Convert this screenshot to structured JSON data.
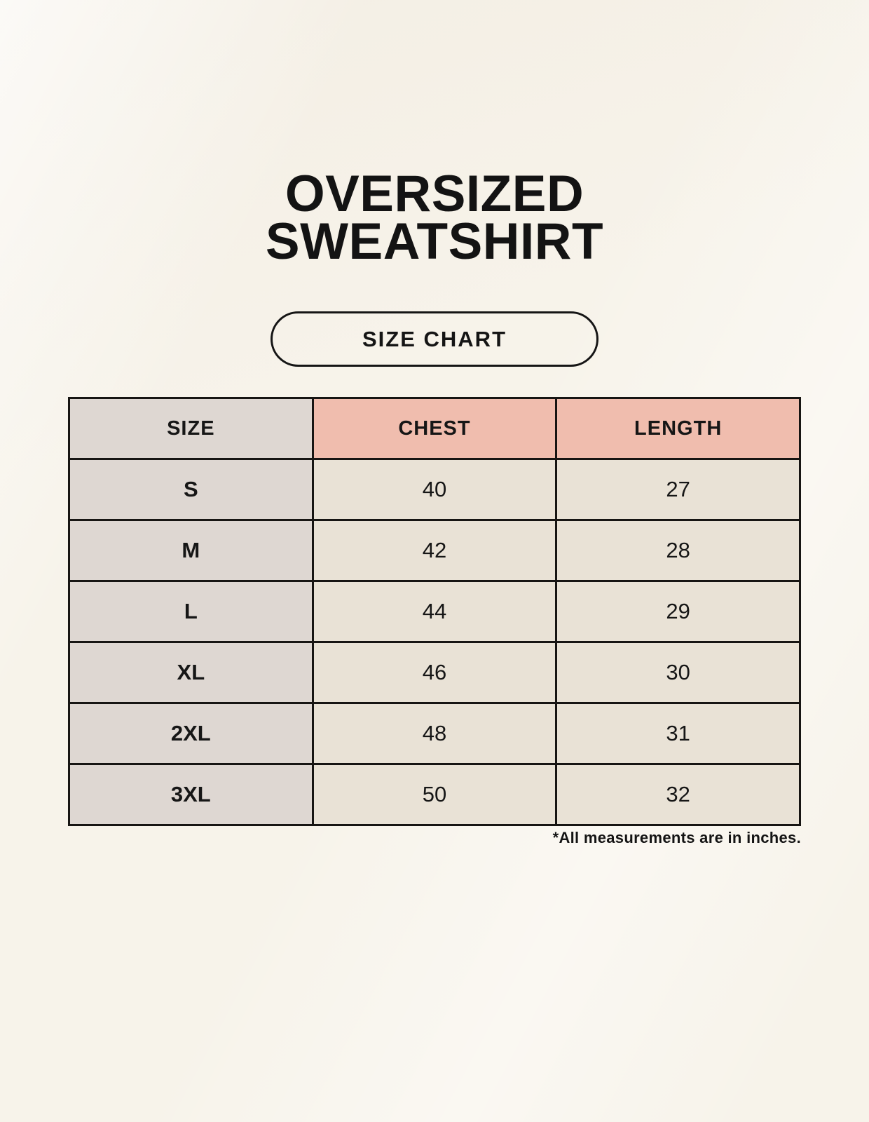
{
  "header": {
    "title_line1": "OVERSIZED",
    "title_line2": "SWEATSHIRT",
    "badge_label": "SIZE CHART"
  },
  "footnote": "*All measurements are in inches.",
  "chart_data": {
    "type": "table",
    "title": "OVERSIZED SWEATSHIRT SIZE CHART",
    "columns": [
      "SIZE",
      "CHEST",
      "LENGTH"
    ],
    "rows": [
      [
        "S",
        "40",
        "27"
      ],
      [
        "M",
        "42",
        "28"
      ],
      [
        "L",
        "44",
        "29"
      ],
      [
        "XL",
        "46",
        "30"
      ],
      [
        "2XL",
        "48",
        "31"
      ],
      [
        "3XL",
        "50",
        "32"
      ]
    ],
    "units": "inches"
  },
  "colors": {
    "page_background": "#F7F3EA",
    "size_column_bg": "#DED7D2",
    "measure_header_bg": "#F0BDAE",
    "value_cell_bg": "#E9E2D6",
    "border": "#171513",
    "text": "#161616"
  }
}
